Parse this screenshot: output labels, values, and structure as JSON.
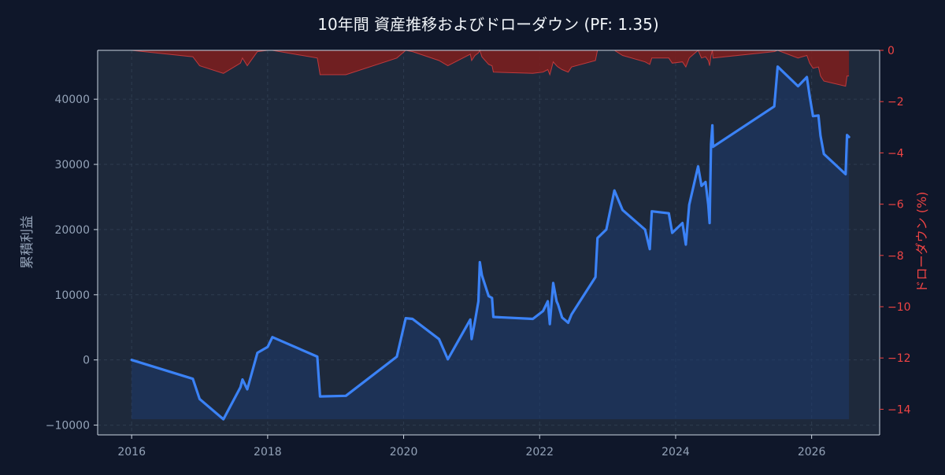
{
  "chart_data": {
    "type": "line",
    "title": "10年間 資産推移およびドローダウン (PF: 1.35)",
    "ylabel_left": "累積利益",
    "ylabel_right": "ドローダウン (%)",
    "xlim": [
      2015.5,
      2027.0
    ],
    "ylim_left": [
      -11500,
      47500
    ],
    "ylim_right": [
      -15,
      0
    ],
    "x_ticks": [
      2016,
      2018,
      2020,
      2022,
      2024,
      2026
    ],
    "y_ticks_left": [
      -10000,
      0,
      10000,
      20000,
      30000,
      40000
    ],
    "y_ticks_right": [
      0,
      -2,
      -4,
      -6,
      -8,
      -10,
      -12,
      -14
    ],
    "grid": true,
    "colors": {
      "background": "#0f172a",
      "plot_background": "#1e293b",
      "equity_line": "#3b82f6",
      "equity_fill": "#1e3a6e",
      "drawdown_fill": "#7f1d1d",
      "drawdown_line": "#ef4444",
      "left_axis_text": "#94a3b8",
      "right_axis_text": "#ef4444",
      "title_text": "#f1f5f9"
    },
    "equity_series": {
      "x": [
        2016.0,
        2016.9,
        2017.0,
        2017.35,
        2017.6,
        2017.63,
        2017.7,
        2017.85,
        2018.0,
        2018.07,
        2018.73,
        2018.75,
        2018.77,
        2019.15,
        2019.9,
        2020.03,
        2020.13,
        2020.52,
        2020.65,
        2020.98,
        2021.0,
        2021.05,
        2021.1,
        2021.12,
        2021.15,
        2021.25,
        2021.3,
        2021.32,
        2021.9,
        2022.05,
        2022.12,
        2022.15,
        2022.2,
        2022.25,
        2022.27,
        2022.33,
        2022.42,
        2022.47,
        2022.82,
        2022.85,
        2022.98,
        2023.1,
        2023.22,
        2023.55,
        2023.62,
        2023.65,
        2023.9,
        2023.95,
        2024.1,
        2024.15,
        2024.2,
        2024.33,
        2024.38,
        2024.44,
        2024.48,
        2024.5,
        2024.52,
        2024.54,
        2024.55,
        2025.45,
        2025.5,
        2025.8,
        2025.93,
        2025.97,
        2026.02,
        2026.1,
        2026.13,
        2026.18,
        2026.5,
        2026.52,
        2026.55
      ],
      "y": [
        0,
        -2900,
        -6000,
        -9100,
        -4200,
        -3000,
        -4500,
        1100,
        2000,
        3500,
        500,
        -2500,
        -5600,
        -5500,
        500,
        6400,
        6300,
        3200,
        100,
        6200,
        3200,
        6000,
        9000,
        15000,
        13000,
        9800,
        9500,
        6600,
        6300,
        7500,
        9000,
        5500,
        11800,
        9000,
        8500,
        6500,
        5700,
        7000,
        12700,
        18700,
        20000,
        26000,
        23000,
        20000,
        17000,
        22800,
        22500,
        19500,
        21000,
        17700,
        23800,
        29700,
        26700,
        27300,
        23800,
        21000,
        33100,
        36000,
        32700,
        38900,
        45000,
        42000,
        43400,
        40500,
        37400,
        37500,
        34400,
        31600,
        28500,
        34500,
        34200
      ]
    },
    "drawdown_series": {
      "x": [
        2016.0,
        2016.9,
        2017.0,
        2017.35,
        2017.6,
        2017.63,
        2017.7,
        2017.85,
        2018.0,
        2018.07,
        2018.73,
        2018.75,
        2018.77,
        2019.15,
        2019.9,
        2020.03,
        2020.13,
        2020.52,
        2020.65,
        2020.98,
        2021.0,
        2021.05,
        2021.1,
        2021.12,
        2021.15,
        2021.25,
        2021.3,
        2021.32,
        2021.9,
        2022.05,
        2022.12,
        2022.15,
        2022.2,
        2022.25,
        2022.27,
        2022.33,
        2022.42,
        2022.47,
        2022.82,
        2022.85,
        2022.98,
        2023.1,
        2023.22,
        2023.55,
        2023.62,
        2023.65,
        2023.9,
        2023.95,
        2024.1,
        2024.15,
        2024.2,
        2024.33,
        2024.38,
        2024.44,
        2024.48,
        2024.5,
        2024.52,
        2024.54,
        2024.55,
        2025.45,
        2025.5,
        2025.8,
        2025.93,
        2025.97,
        2026.02,
        2026.1,
        2026.13,
        2026.18,
        2026.5,
        2026.52,
        2026.55
      ],
      "y": [
        0,
        -0.25,
        -0.6,
        -0.9,
        -0.5,
        -0.3,
        -0.6,
        -0.05,
        0,
        0,
        -0.3,
        -0.6,
        -0.95,
        -0.95,
        -0.3,
        0,
        -0.05,
        -0.4,
        -0.6,
        -0.15,
        -0.4,
        -0.2,
        -0.1,
        0,
        -0.25,
        -0.55,
        -0.6,
        -0.85,
        -0.9,
        -0.85,
        -0.75,
        -0.95,
        -0.45,
        -0.6,
        -0.65,
        -0.75,
        -0.85,
        -0.65,
        -0.4,
        0,
        0,
        0,
        -0.2,
        -0.45,
        -0.55,
        -0.3,
        -0.3,
        -0.5,
        -0.45,
        -0.65,
        -0.3,
        0,
        -0.3,
        -0.25,
        -0.4,
        -0.6,
        -0.2,
        0,
        -0.3,
        -0.05,
        0,
        -0.3,
        -0.2,
        -0.5,
        -0.7,
        -0.65,
        -1.0,
        -1.2,
        -1.4,
        -1.0,
        -1.0
      ]
    }
  }
}
